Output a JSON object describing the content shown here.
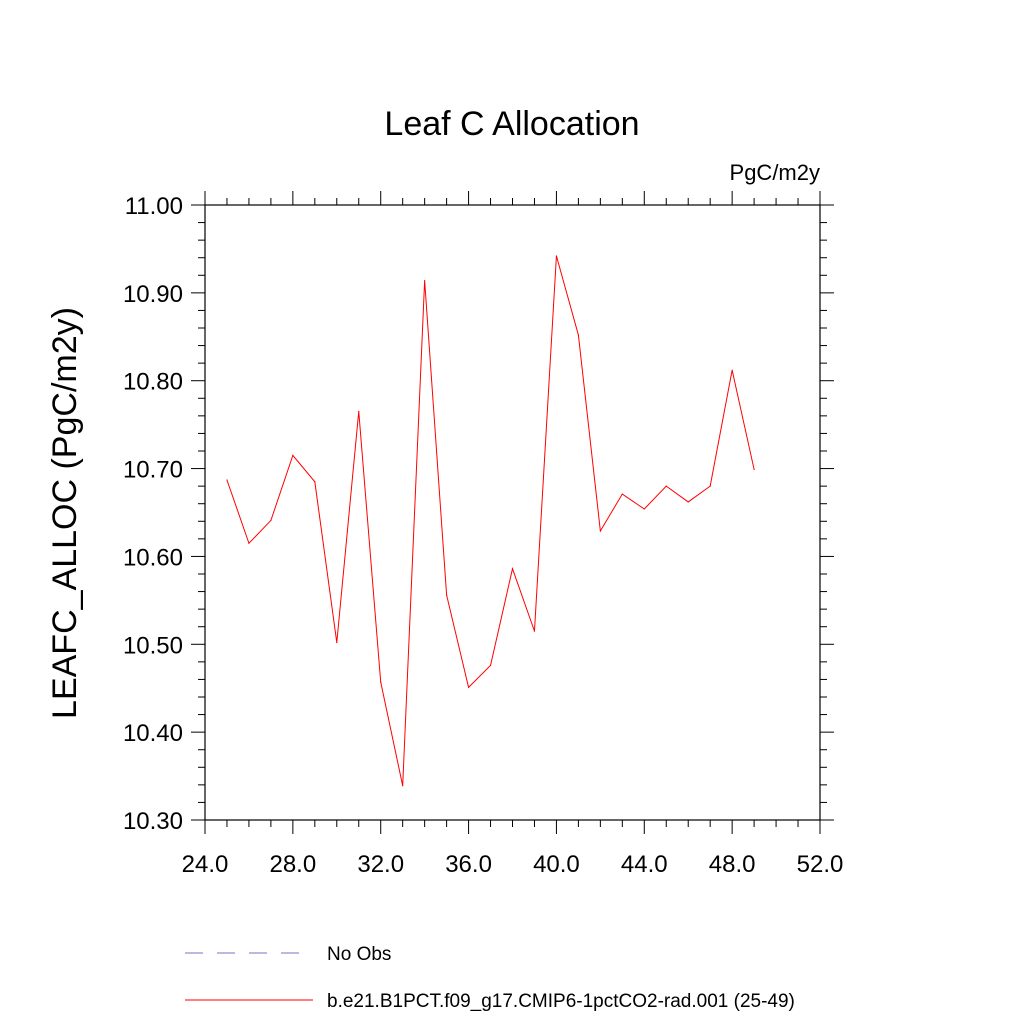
{
  "chart_data": {
    "type": "line",
    "title": "Leaf C Allocation",
    "units_label": "PgC/m2y",
    "xlabel": "",
    "ylabel": "LEAFC_ALLOC  (PgC/m2y)",
    "xlim": [
      24.0,
      52.0
    ],
    "ylim": [
      10.3,
      11.0
    ],
    "x_ticks": [
      24.0,
      28.0,
      32.0,
      36.0,
      40.0,
      44.0,
      48.0,
      52.0
    ],
    "x_tick_labels": [
      "24.0",
      "28.0",
      "32.0",
      "36.0",
      "40.0",
      "44.0",
      "48.0",
      "52.0"
    ],
    "y_ticks": [
      10.3,
      10.4,
      10.5,
      10.6,
      10.7,
      10.8,
      10.9,
      11.0
    ],
    "y_tick_labels": [
      "10.30",
      "10.40",
      "10.50",
      "10.60",
      "10.70",
      "10.80",
      "10.90",
      "11.00"
    ],
    "grid": false,
    "legend_position": "bottom",
    "series": [
      {
        "name": "b.e21.B1PCT.f09_g17.CMIP6-1pctCO2-rad.001 (25-49)",
        "color": "#ff0000",
        "style": "solid",
        "x": [
          25,
          26,
          27,
          28,
          29,
          30,
          31,
          32,
          33,
          34,
          35,
          36,
          37,
          38,
          39,
          40,
          41,
          42,
          43,
          44,
          45,
          46,
          47,
          48,
          49
        ],
        "y": [
          10.687,
          10.615,
          10.641,
          10.715,
          10.685,
          10.502,
          10.765,
          10.457,
          10.339,
          10.914,
          10.556,
          10.451,
          10.476,
          10.586,
          10.515,
          10.942,
          10.852,
          10.629,
          10.671,
          10.654,
          10.68,
          10.662,
          10.68,
          10.812,
          10.699
        ]
      }
    ],
    "legend": [
      {
        "label": "No Obs",
        "color": "#7b6fc9",
        "style": "dashed"
      },
      {
        "label": "b.e21.B1PCT.f09_g17.CMIP6-1pctCO2-rad.001 (25-49)",
        "color": "#ff0000",
        "style": "solid"
      }
    ]
  }
}
